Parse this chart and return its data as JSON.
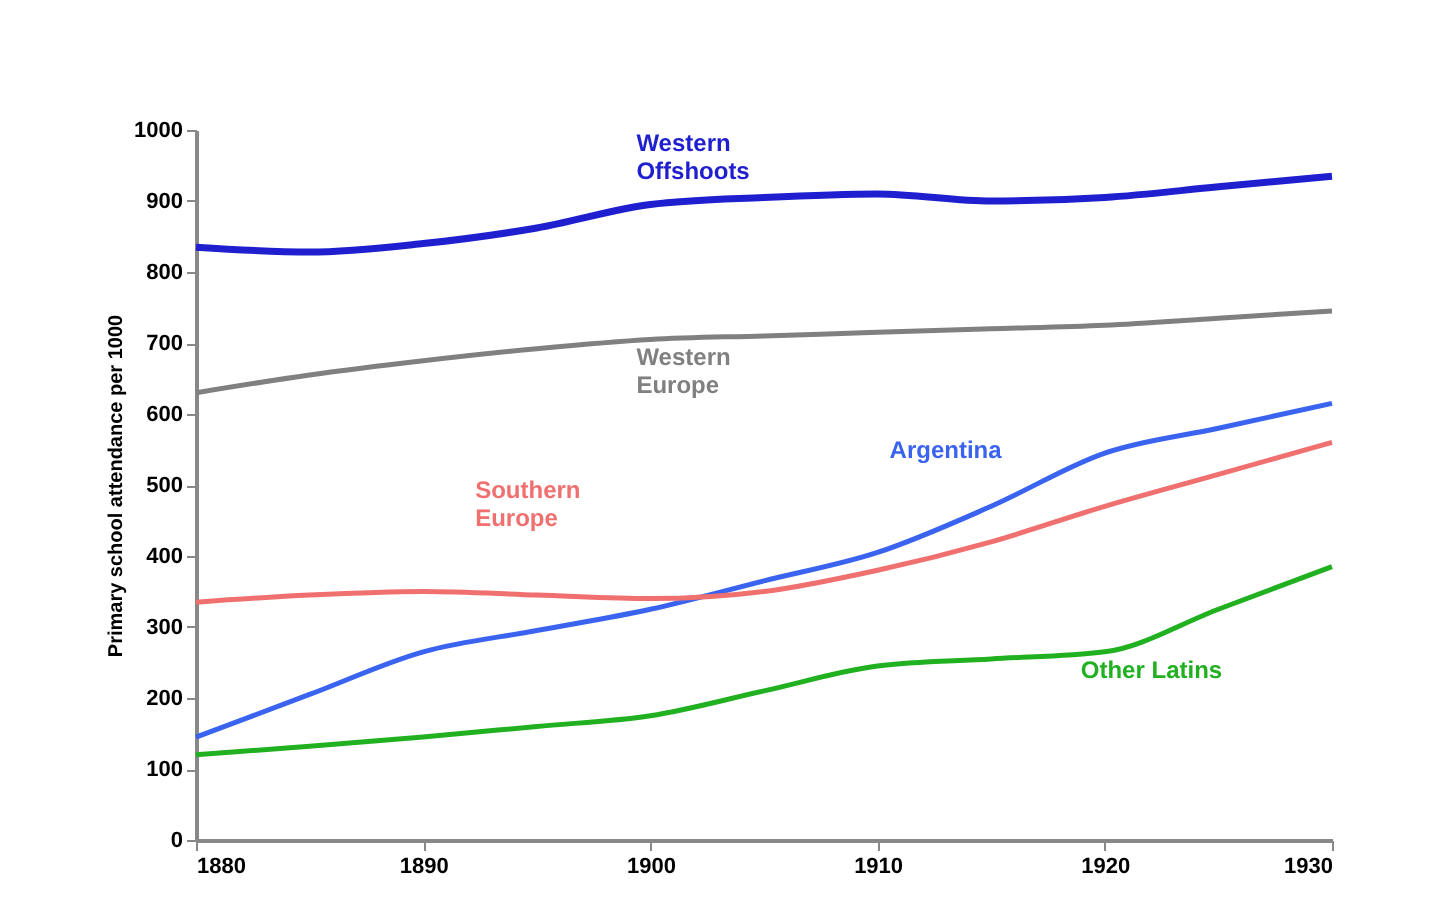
{
  "chart_data": {
    "type": "line",
    "ylabel": "Primary school attendance per 1000",
    "x": [
      1880,
      1885,
      1890,
      1895,
      1900,
      1905,
      1910,
      1915,
      1920,
      1925,
      1930
    ],
    "xlim": [
      1880,
      1930
    ],
    "xticks": [
      1880,
      1890,
      1900,
      1910,
      1920,
      1930
    ],
    "ylim": [
      0,
      1000
    ],
    "yticks": [
      0,
      100,
      200,
      300,
      400,
      500,
      600,
      700,
      800,
      900,
      1000
    ],
    "marker": "none",
    "line_style": "solid",
    "series": [
      {
        "name": "Western Offshoots",
        "color": "#1f1fd0",
        "values": [
          835,
          828,
          840,
          862,
          895,
          905,
          910,
          900,
          905,
          920,
          935
        ]
      },
      {
        "name": "Western Europe",
        "color": "#808080",
        "values": [
          630,
          655,
          675,
          692,
          705,
          710,
          715,
          720,
          725,
          735,
          745
        ]
      },
      {
        "name": "Argentina",
        "color": "#3a64f0",
        "values": [
          145,
          205,
          265,
          295,
          325,
          365,
          405,
          470,
          545,
          580,
          615
        ]
      },
      {
        "name": "Southern Europe",
        "color": "#f07070",
        "values": [
          335,
          345,
          350,
          345,
          340,
          350,
          380,
          420,
          470,
          515,
          560
        ]
      },
      {
        "name": "Other Latins",
        "color": "#20b020",
        "values": [
          120,
          132,
          145,
          160,
          175,
          210,
          245,
          255,
          265,
          325,
          385
        ]
      }
    ]
  }
}
